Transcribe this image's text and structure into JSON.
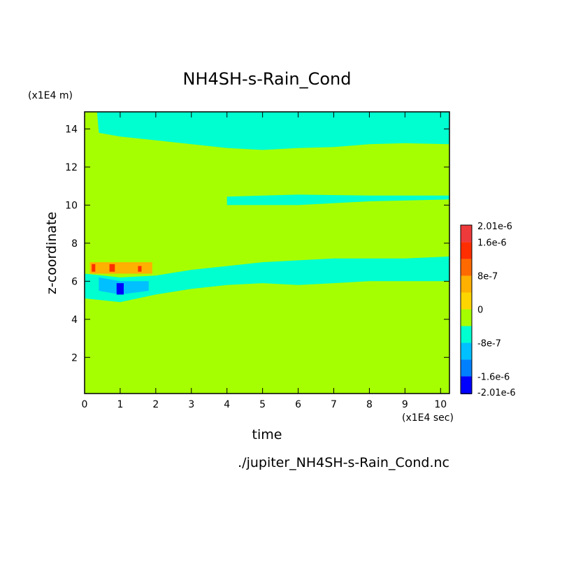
{
  "chart_data": {
    "type": "heatmap",
    "title": "NH4SH-s-Rain_Cond",
    "xlabel": "time",
    "ylabel": "z-coordinate",
    "x_unit": "(x1E4 sec)",
    "y_unit": "(x1E4 m)",
    "xlim": [
      0,
      10.25
    ],
    "ylim": [
      0.1,
      14.9
    ],
    "x_ticks": [
      0,
      1,
      2,
      3,
      4,
      5,
      6,
      7,
      8,
      9,
      10
    ],
    "y_ticks": [
      2,
      4,
      6,
      8,
      10,
      12,
      14
    ],
    "footer": "./jupiter_NH4SH-s-Rain_Cond.nc",
    "colorbar": {
      "labels": [
        "2.01e-6",
        "1.6e-6",
        "8e-7",
        "0",
        "-8e-7",
        "-1.6e-6",
        "-2.01e-6"
      ],
      "label_values": [
        2.01e-06,
        1.6e-06,
        8e-07,
        0,
        -8e-07,
        -1.6e-06,
        -2.01e-06
      ],
      "levels": [
        {
          "value": 2.01e-06,
          "color": "#ee3a3a"
        },
        {
          "value": 1.6e-06,
          "color": "#ff2e00"
        },
        {
          "value": 1.2e-06,
          "color": "#ff6a00"
        },
        {
          "value": 8e-07,
          "color": "#ffb000"
        },
        {
          "value": 4e-07,
          "color": "#ffd500"
        },
        {
          "value": 0,
          "color": "#a6ff00"
        },
        {
          "value": -4e-07,
          "color": "#00ffd0"
        },
        {
          "value": -8e-07,
          "color": "#00c0ff"
        },
        {
          "value": -1.2e-06,
          "color": "#0080ff"
        },
        {
          "value": -1.6e-06,
          "color": "#0000ff"
        },
        {
          "value": -2.01e-06,
          "color": "#00008b"
        }
      ]
    },
    "background_color": "#a6ff00",
    "regions": [
      {
        "label": "upper negative band",
        "color": "#00ffd0",
        "points": [
          [
            0.35,
            14.9
          ],
          [
            10.25,
            14.9
          ],
          [
            10.25,
            13.2
          ],
          [
            9.0,
            13.25
          ],
          [
            8.0,
            13.2
          ],
          [
            7.0,
            13.05
          ],
          [
            6.0,
            13.0
          ],
          [
            5.0,
            12.9
          ],
          [
            4.0,
            13.0
          ],
          [
            3.0,
            13.2
          ],
          [
            2.0,
            13.4
          ],
          [
            1.0,
            13.6
          ],
          [
            0.4,
            13.8
          ]
        ]
      },
      {
        "label": "mid negative band",
        "color": "#00ffd0",
        "points": [
          [
            4.0,
            10.45
          ],
          [
            6.0,
            10.55
          ],
          [
            8.0,
            10.5
          ],
          [
            10.25,
            10.5
          ],
          [
            10.25,
            10.3
          ],
          [
            8.0,
            10.2
          ],
          [
            6.0,
            10.0
          ],
          [
            4.0,
            10.0
          ]
        ]
      },
      {
        "label": "lower negative band",
        "color": "#00ffd0",
        "points": [
          [
            0.0,
            6.4
          ],
          [
            1.0,
            6.2
          ],
          [
            2.0,
            6.3
          ],
          [
            3.0,
            6.6
          ],
          [
            4.0,
            6.8
          ],
          [
            5.0,
            7.0
          ],
          [
            6.0,
            7.1
          ],
          [
            7.0,
            7.2
          ],
          [
            8.0,
            7.2
          ],
          [
            9.0,
            7.2
          ],
          [
            10.25,
            7.3
          ],
          [
            10.25,
            6.0
          ],
          [
            9.0,
            6.0
          ],
          [
            8.0,
            6.0
          ],
          [
            7.0,
            5.9
          ],
          [
            6.0,
            5.8
          ],
          [
            5.0,
            5.9
          ],
          [
            4.0,
            5.8
          ],
          [
            3.0,
            5.6
          ],
          [
            2.0,
            5.3
          ],
          [
            1.0,
            4.9
          ],
          [
            0.0,
            5.1
          ]
        ]
      },
      {
        "label": "mid blue patch",
        "color": "#00c0ff",
        "points": [
          [
            0.4,
            6.2
          ],
          [
            1.0,
            6.0
          ],
          [
            1.8,
            6.0
          ],
          [
            1.8,
            5.5
          ],
          [
            1.0,
            5.3
          ],
          [
            0.4,
            5.5
          ]
        ]
      },
      {
        "label": "deep blue patch",
        "color": "#0000ff",
        "points": [
          [
            0.9,
            5.9
          ],
          [
            1.1,
            5.9
          ],
          [
            1.1,
            5.3
          ],
          [
            0.9,
            5.3
          ]
        ]
      },
      {
        "label": "orange patches",
        "color": "#ffb000",
        "points": [
          [
            0.15,
            7.0
          ],
          [
            1.9,
            7.0
          ],
          [
            1.9,
            6.4
          ],
          [
            0.15,
            6.4
          ]
        ]
      },
      {
        "label": "red patch 1",
        "color": "#ff2e00",
        "points": [
          [
            0.2,
            6.9
          ],
          [
            0.3,
            6.9
          ],
          [
            0.3,
            6.5
          ],
          [
            0.2,
            6.5
          ]
        ]
      },
      {
        "label": "red patch 2",
        "color": "#ff2e00",
        "points": [
          [
            0.7,
            6.9
          ],
          [
            0.85,
            6.9
          ],
          [
            0.85,
            6.5
          ],
          [
            0.7,
            6.5
          ]
        ]
      },
      {
        "label": "red patch 3",
        "color": "#ff2e00",
        "points": [
          [
            1.5,
            6.8
          ],
          [
            1.6,
            6.8
          ],
          [
            1.6,
            6.5
          ],
          [
            1.5,
            6.5
          ]
        ]
      }
    ]
  }
}
